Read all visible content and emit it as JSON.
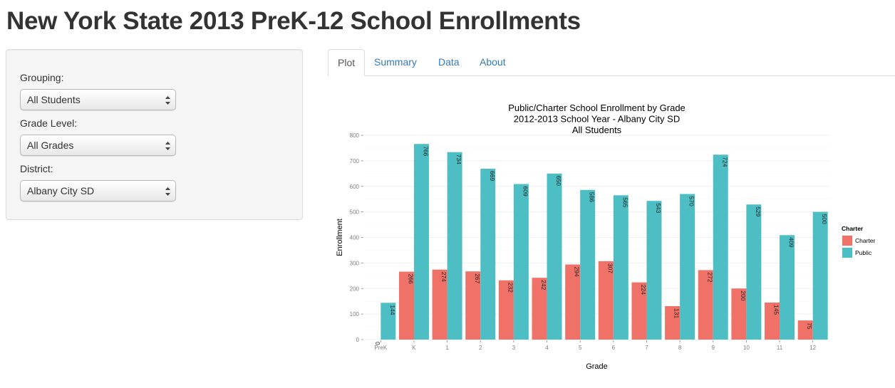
{
  "page": {
    "title": "New York State 2013 PreK-12 School Enrollments"
  },
  "sidebar": {
    "grouping": {
      "label": "Grouping:",
      "value": "All Students"
    },
    "grade_level": {
      "label": "Grade Level:",
      "value": "All Grades"
    },
    "district": {
      "label": "District:",
      "value": "Albany City SD"
    }
  },
  "tabs": [
    {
      "label": "Plot",
      "active": true
    },
    {
      "label": "Summary",
      "active": false
    },
    {
      "label": "Data",
      "active": false
    },
    {
      "label": "About",
      "active": false
    }
  ],
  "colors": {
    "charter": "#f07167",
    "public": "#4dbfc4",
    "tab_link": "#337ab7"
  },
  "chart_data": {
    "type": "bar",
    "title_lines": [
      "Public/Charter School Enrollment by Grade",
      "2012-2013 School Year - Albany City SD",
      "All Students"
    ],
    "xlabel": "Grade",
    "ylabel": "Enrollment",
    "ylim": [
      0,
      800
    ],
    "yticks": [
      0,
      100,
      200,
      300,
      400,
      500,
      600,
      700,
      800
    ],
    "grid": true,
    "legend": {
      "title": "Charter",
      "position": "right"
    },
    "categories": [
      "PreK",
      "K",
      "1",
      "2",
      "3",
      "4",
      "5",
      "6",
      "7",
      "8",
      "9",
      "10",
      "11",
      "12"
    ],
    "series": [
      {
        "name": "Charter",
        "values": [
          0,
          266,
          274,
          267,
          232,
          242,
          294,
          307,
          224,
          131,
          272,
          200,
          145,
          75
        ]
      },
      {
        "name": "Public",
        "values": [
          144,
          766,
          734,
          669,
          609,
          650,
          586,
          565,
          543,
          570,
          724,
          529,
          409,
          500
        ]
      }
    ]
  }
}
